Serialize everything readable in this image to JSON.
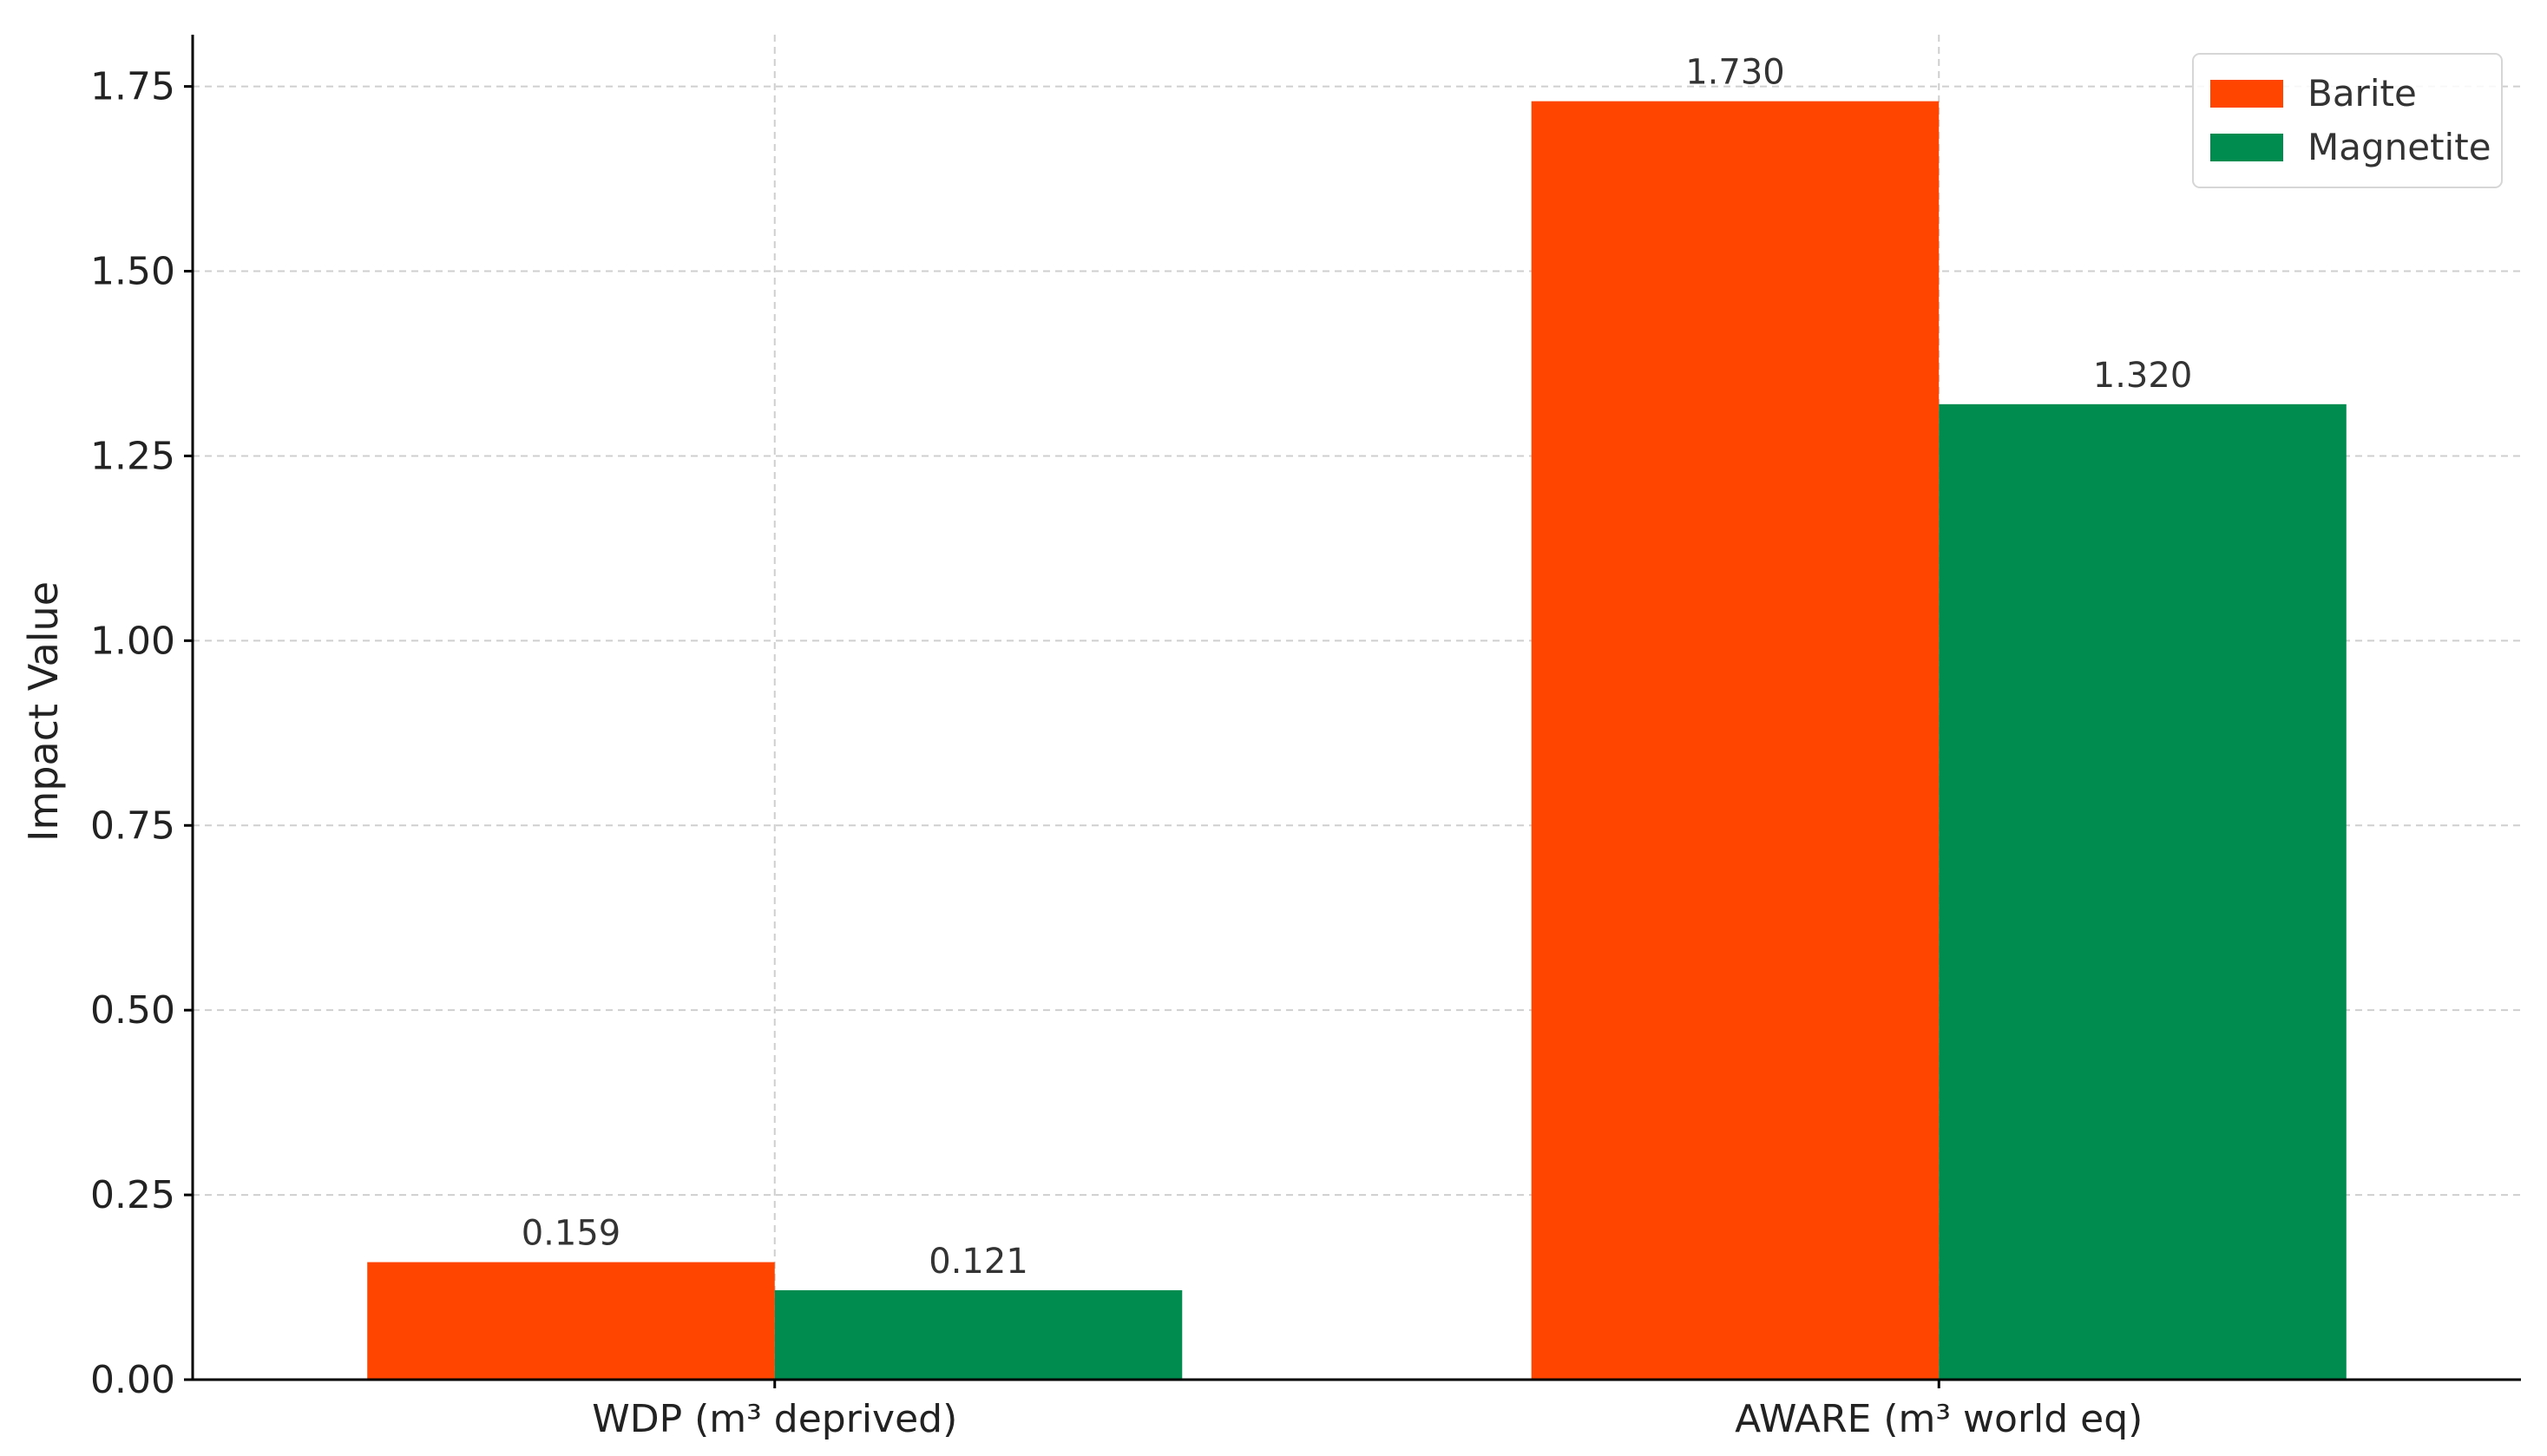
{
  "chart_data": {
    "type": "bar",
    "categories": [
      "WDP (m³ deprived)",
      "AWARE (m³ world eq)"
    ],
    "series": [
      {
        "name": "Barite",
        "color": "#FF4500",
        "values": [
          0.159,
          1.73
        ],
        "labels": [
          "0.159",
          "1.730"
        ]
      },
      {
        "name": "Magnetite",
        "color": "#008B4F",
        "values": [
          0.121,
          1.32
        ],
        "labels": [
          "0.121",
          "1.320"
        ]
      }
    ],
    "title": "",
    "xlabel": "",
    "ylabel": "Impact Value",
    "ylim": [
      0,
      1.82
    ],
    "yticks": [
      0,
      0.25,
      0.5,
      0.75,
      1.0,
      1.25,
      1.5,
      1.75
    ],
    "ytick_labels": [
      "0.00",
      "0.25",
      "0.50",
      "0.75",
      "1.00",
      "1.25",
      "1.50",
      "1.75"
    ],
    "grid": true,
    "legend_position": "top-right"
  }
}
